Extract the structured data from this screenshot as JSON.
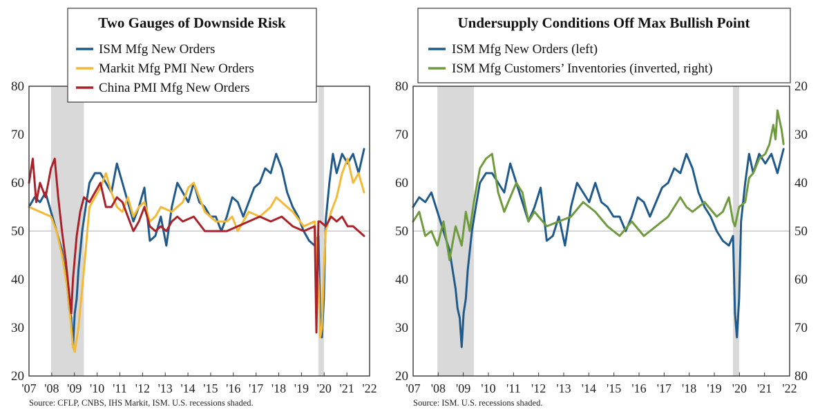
{
  "colors": {
    "ism": "#1f5a8a",
    "markit": "#f3b937",
    "china": "#a92229",
    "inventories": "#6f9a3e",
    "recession": "#d9d9d9",
    "ref_line": "#c8c8c8",
    "frame": "#333333"
  },
  "chart_data": [
    {
      "type": "line",
      "title": "Two Gauges of Downside Risk",
      "x_tick_labels": [
        "'07",
        "'08",
        "'09",
        "'10",
        "'11",
        "'12",
        "'13",
        "'14",
        "'15",
        "'16",
        "'17",
        "'18",
        "'19",
        "'20",
        "'21",
        "'22"
      ],
      "y_ticks": [
        20,
        30,
        40,
        50,
        60,
        70,
        80
      ],
      "ylim": [
        20,
        80
      ],
      "xlim": [
        2007.0,
        2022.5
      ],
      "reference_line": 50,
      "recessions": [
        [
          2008.0,
          2009.5
        ],
        [
          2020.17,
          2020.42
        ]
      ],
      "series": [
        {
          "name": "ISM Mfg New Orders",
          "color_key": "ism",
          "x": [
            2007.0,
            2007.25,
            2007.5,
            2007.75,
            2008.0,
            2008.25,
            2008.5,
            2008.75,
            2008.83,
            2008.92,
            2009.0,
            2009.08,
            2009.17,
            2009.25,
            2009.42,
            2009.58,
            2009.75,
            2010.0,
            2010.25,
            2010.5,
            2010.75,
            2011.0,
            2011.25,
            2011.5,
            2011.75,
            2012.0,
            2012.25,
            2012.5,
            2012.75,
            2013.0,
            2013.25,
            2013.5,
            2013.75,
            2014.0,
            2014.25,
            2014.5,
            2014.75,
            2015.0,
            2015.25,
            2015.5,
            2015.75,
            2016.0,
            2016.25,
            2016.5,
            2016.75,
            2017.0,
            2017.25,
            2017.5,
            2017.75,
            2018.0,
            2018.25,
            2018.5,
            2018.75,
            2019.0,
            2019.25,
            2019.5,
            2019.75,
            2020.0,
            2020.17,
            2020.25,
            2020.33,
            2020.42,
            2020.5,
            2020.67,
            2020.83,
            2021.0,
            2021.25,
            2021.5,
            2021.75,
            2022.0,
            2022.25
          ],
          "y": [
            55,
            57,
            56,
            58,
            54,
            50,
            46,
            38,
            34,
            32,
            26,
            33,
            36,
            42,
            50,
            55,
            60,
            62,
            62,
            60,
            58,
            64,
            60,
            56,
            52,
            55,
            59,
            48,
            49,
            53,
            47,
            55,
            60,
            58,
            56,
            60,
            56,
            55,
            53,
            53,
            50,
            53,
            57,
            56,
            53,
            56,
            59,
            60,
            63,
            62,
            66,
            63,
            58,
            55,
            53,
            50,
            48,
            47,
            49,
            33,
            28,
            36,
            52,
            60,
            66,
            62,
            66,
            64,
            66,
            62,
            67
          ]
        },
        {
          "name": "Markit Mfg PMI New Orders",
          "color_key": "markit",
          "x": [
            2007.0,
            2007.5,
            2008.0,
            2008.25,
            2008.5,
            2008.75,
            2008.92,
            2009.0,
            2009.08,
            2009.25,
            2009.5,
            2009.75,
            2010.0,
            2010.25,
            2010.5,
            2010.75,
            2011.0,
            2011.25,
            2011.5,
            2011.75,
            2012.0,
            2012.25,
            2012.5,
            2012.75,
            2013.0,
            2013.5,
            2014.0,
            2014.25,
            2014.5,
            2014.75,
            2015.0,
            2015.5,
            2016.0,
            2016.25,
            2016.5,
            2016.75,
            2017.0,
            2017.5,
            2018.0,
            2018.25,
            2018.5,
            2018.75,
            2019.0,
            2019.5,
            2020.0,
            2020.17,
            2020.25,
            2020.33,
            2020.42,
            2020.5,
            2020.75,
            2021.0,
            2021.25,
            2021.5,
            2021.75,
            2022.0,
            2022.25
          ],
          "y": [
            55,
            54,
            53,
            50,
            45,
            38,
            30,
            26,
            25,
            30,
            42,
            55,
            57,
            59,
            62,
            58,
            55,
            54,
            57,
            53,
            55,
            56,
            52,
            53,
            55,
            54,
            56,
            59,
            60,
            57,
            54,
            52,
            52,
            53,
            50,
            52,
            54,
            53,
            55,
            57,
            56,
            55,
            54,
            51,
            52,
            40,
            28,
            30,
            42,
            50,
            54,
            57,
            62,
            65,
            60,
            62,
            58
          ]
        },
        {
          "name": "China PMI Mfg New Orders",
          "color_key": "china",
          "x": [
            2007.0,
            2007.17,
            2007.33,
            2007.5,
            2007.75,
            2008.0,
            2008.17,
            2008.33,
            2008.5,
            2008.67,
            2008.83,
            2008.92,
            2009.0,
            2009.17,
            2009.33,
            2009.5,
            2009.75,
            2010.0,
            2010.25,
            2010.5,
            2010.75,
            2011.0,
            2011.25,
            2011.5,
            2011.75,
            2012.0,
            2012.25,
            2012.5,
            2012.75,
            2013.0,
            2013.25,
            2013.5,
            2013.75,
            2014.0,
            2014.5,
            2015.0,
            2015.5,
            2016.0,
            2016.5,
            2017.0,
            2017.5,
            2018.0,
            2018.5,
            2019.0,
            2019.5,
            2020.0,
            2020.08,
            2020.17,
            2020.25,
            2020.5,
            2020.75,
            2021.0,
            2021.25,
            2021.5,
            2021.75,
            2022.0,
            2022.25
          ],
          "y": [
            60,
            65,
            56,
            60,
            57,
            63,
            65,
            57,
            50,
            44,
            37,
            33,
            40,
            49,
            54,
            57,
            56,
            58,
            60,
            55,
            55,
            57,
            56,
            53,
            50,
            52,
            55,
            51,
            50,
            51,
            50,
            52,
            53,
            52,
            53,
            50,
            50,
            50,
            51,
            52,
            53,
            52,
            53,
            51,
            50,
            51,
            29,
            52,
            52,
            51,
            53,
            52,
            53,
            51,
            51,
            50,
            49
          ]
        }
      ],
      "source": "Source: CFLP, CNBS, IHS Markit, ISM. U.S. recessions shaded."
    },
    {
      "type": "line",
      "title": "Undersupply Conditions Off Max Bullish Point",
      "x_tick_labels": [
        "'07",
        "'08",
        "'09",
        "'10",
        "'11",
        "'12",
        "'13",
        "'14",
        "'15",
        "'16",
        "'17",
        "'18",
        "'19",
        "'20",
        "'21",
        "'22"
      ],
      "y_ticks": [
        20,
        30,
        40,
        50,
        60,
        70,
        80
      ],
      "ylim": [
        20,
        80
      ],
      "y2_ticks": [
        20,
        30,
        40,
        50,
        60,
        70,
        80
      ],
      "y2lim": [
        80,
        20
      ],
      "y2_inverted": true,
      "xlim": [
        2007.0,
        2022.5
      ],
      "reference_line": 50,
      "recessions": [
        [
          2008.0,
          2009.5
        ],
        [
          2020.17,
          2020.42
        ]
      ],
      "series": [
        {
          "name": "ISM Mfg New Orders (left)",
          "color_key": "ism",
          "axis": "left",
          "x": [
            2007.0,
            2007.25,
            2007.5,
            2007.75,
            2008.0,
            2008.25,
            2008.5,
            2008.75,
            2008.83,
            2008.92,
            2009.0,
            2009.08,
            2009.17,
            2009.25,
            2009.42,
            2009.58,
            2009.75,
            2010.0,
            2010.25,
            2010.5,
            2010.75,
            2011.0,
            2011.25,
            2011.5,
            2011.75,
            2012.0,
            2012.25,
            2012.5,
            2012.75,
            2013.0,
            2013.25,
            2013.5,
            2013.75,
            2014.0,
            2014.25,
            2014.5,
            2014.75,
            2015.0,
            2015.25,
            2015.5,
            2015.75,
            2016.0,
            2016.25,
            2016.5,
            2016.75,
            2017.0,
            2017.25,
            2017.5,
            2017.75,
            2018.0,
            2018.25,
            2018.5,
            2018.75,
            2019.0,
            2019.25,
            2019.5,
            2019.75,
            2020.0,
            2020.17,
            2020.25,
            2020.33,
            2020.42,
            2020.5,
            2020.67,
            2020.83,
            2021.0,
            2021.25,
            2021.5,
            2021.75,
            2022.0,
            2022.25
          ],
          "y": [
            55,
            57,
            56,
            58,
            54,
            50,
            46,
            38,
            34,
            32,
            26,
            33,
            36,
            42,
            50,
            55,
            60,
            62,
            62,
            60,
            58,
            64,
            60,
            56,
            52,
            55,
            59,
            48,
            49,
            53,
            47,
            55,
            60,
            58,
            56,
            60,
            56,
            55,
            53,
            53,
            50,
            53,
            57,
            56,
            53,
            56,
            59,
            60,
            63,
            62,
            66,
            63,
            58,
            55,
            53,
            50,
            48,
            47,
            49,
            33,
            28,
            36,
            52,
            60,
            66,
            62,
            66,
            64,
            66,
            62,
            67
          ]
        },
        {
          "name": "ISM Mfg Customers’ Inventories (inverted, right)",
          "color_key": "inventories",
          "axis": "right",
          "x": [
            2007.0,
            2007.25,
            2007.5,
            2007.75,
            2008.0,
            2008.25,
            2008.5,
            2008.75,
            2009.0,
            2009.17,
            2009.33,
            2009.5,
            2009.75,
            2010.0,
            2010.25,
            2010.5,
            2010.75,
            2011.0,
            2011.25,
            2011.5,
            2011.75,
            2012.0,
            2012.5,
            2013.0,
            2013.5,
            2014.0,
            2014.25,
            2014.5,
            2015.0,
            2015.5,
            2016.0,
            2016.5,
            2017.0,
            2017.5,
            2018.0,
            2018.25,
            2018.5,
            2019.0,
            2019.5,
            2019.75,
            2020.0,
            2020.17,
            2020.25,
            2020.42,
            2020.67,
            2020.83,
            2021.0,
            2021.25,
            2021.5,
            2021.67,
            2021.83,
            2021.92,
            2022.0,
            2022.17,
            2022.25
          ],
          "y": [
            48,
            46,
            51,
            50,
            53,
            48,
            56,
            49,
            53,
            46,
            50,
            44,
            37,
            35,
            34,
            42,
            46,
            43,
            40,
            42,
            48,
            46,
            49,
            48,
            47,
            44,
            45,
            46,
            49,
            51,
            48,
            51,
            49,
            47,
            43,
            45,
            46,
            44,
            47,
            46,
            43,
            48,
            49,
            45,
            44,
            39,
            38,
            35,
            34,
            32,
            28,
            31,
            25,
            29,
            32
          ]
        }
      ],
      "source": "Source:  ISM. U.S. recessions shaded."
    }
  ]
}
